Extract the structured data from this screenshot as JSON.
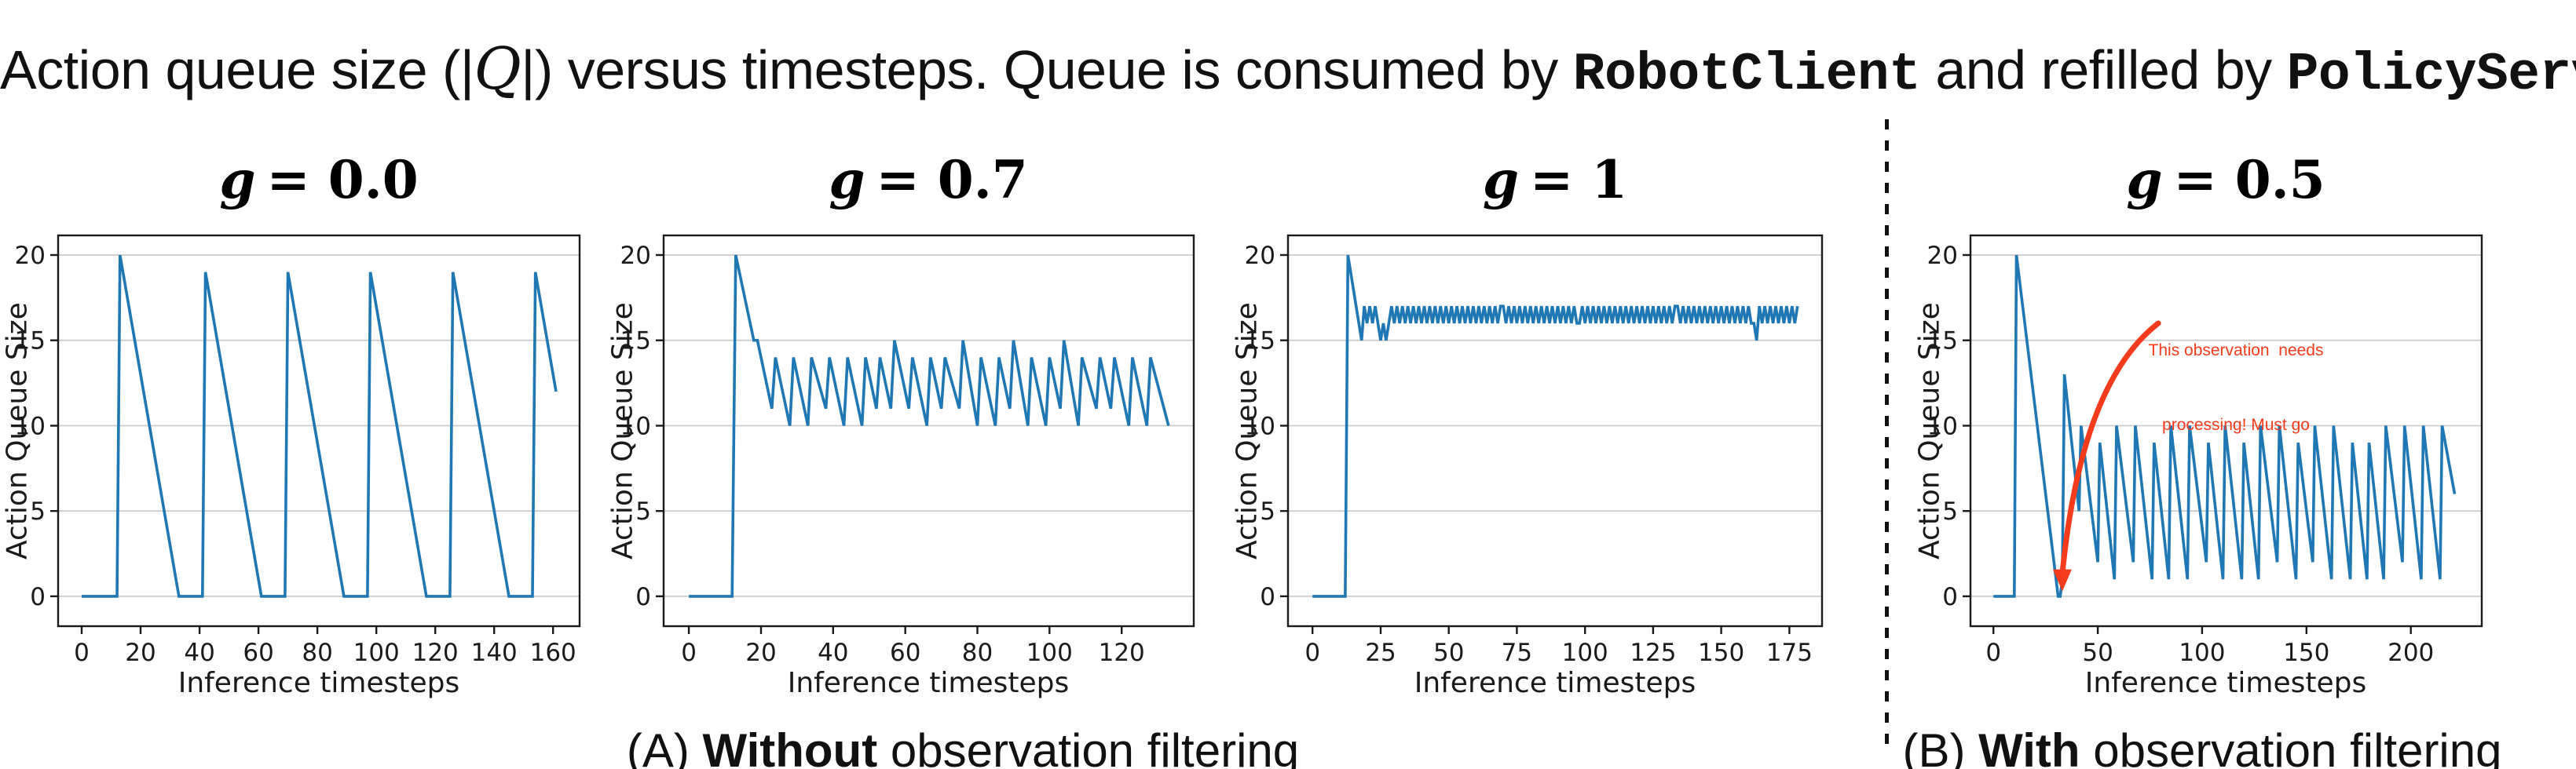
{
  "title": {
    "part1": "Action queue size (|",
    "q": "Q",
    "part2": "|) versus timesteps. Queue is consumed by ",
    "robot": "RobotClient",
    "part3": " and refilled by ",
    "policy": "PolicyServer"
  },
  "captions": {
    "a_prefix": "(A) ",
    "a_bold": "Without",
    "a_rest": " observation filtering",
    "b_prefix": "(B) ",
    "b_bold": "With",
    "b_rest": " observation filtering"
  },
  "colors": {
    "line": "#1f77b4",
    "grid": "#cccccc",
    "spine": "#1a1a1a",
    "annotation_red": "#f43b1c",
    "background": "#ffffff"
  },
  "chart_data": [
    {
      "type": "line",
      "title": "g = 0.0",
      "title_var": "g",
      "title_rest": "= 0.0",
      "xlabel": "Inference timesteps",
      "ylabel": "Action Queue Size",
      "xlim": [
        -8,
        169
      ],
      "ylim": [
        -1.75,
        21.15
      ],
      "xticks": [
        0,
        20,
        40,
        60,
        80,
        100,
        120,
        140,
        160
      ],
      "yticks": [
        0,
        5,
        10,
        15,
        20
      ],
      "grid": "horizontal",
      "legend": "none",
      "line_color": "#1f77b4",
      "vertices": [
        [
          0,
          0
        ],
        [
          12,
          0
        ],
        [
          13,
          20
        ],
        [
          33,
          0
        ],
        [
          41,
          0
        ],
        [
          42,
          19
        ],
        [
          61,
          0
        ],
        [
          69,
          0
        ],
        [
          70,
          19
        ],
        [
          89,
          0
        ],
        [
          97,
          0
        ],
        [
          98,
          19
        ],
        [
          117,
          0
        ],
        [
          125,
          0
        ],
        [
          126,
          19
        ],
        [
          145,
          0
        ],
        [
          153,
          0
        ],
        [
          154,
          19
        ],
        [
          161,
          12
        ]
      ]
    },
    {
      "type": "line",
      "title": "g = 0.7",
      "title_var": "g",
      "title_rest": "= 0.7",
      "xlabel": "Inference timesteps",
      "ylabel": "Action Queue Size",
      "xlim": [
        -7,
        140
      ],
      "ylim": [
        -1.75,
        21.15
      ],
      "xticks": [
        0,
        20,
        40,
        60,
        80,
        100,
        120
      ],
      "yticks": [
        0,
        5,
        10,
        15,
        20
      ],
      "grid": "horizontal",
      "legend": "none",
      "line_color": "#1f77b4",
      "vertices": [
        [
          0,
          0
        ],
        [
          12,
          0
        ],
        [
          13,
          20
        ],
        [
          18,
          15
        ],
        [
          19,
          15
        ],
        [
          23,
          11
        ],
        [
          24,
          14
        ],
        [
          28,
          10
        ],
        [
          29,
          14
        ],
        [
          33,
          10
        ],
        [
          34,
          14
        ],
        [
          38,
          11
        ],
        [
          39,
          14
        ],
        [
          43,
          10
        ],
        [
          44,
          14
        ],
        [
          48,
          10
        ],
        [
          49,
          14
        ],
        [
          52,
          11
        ],
        [
          53,
          14
        ],
        [
          56,
          11
        ],
        [
          57,
          15
        ],
        [
          61,
          11
        ],
        [
          62,
          14
        ],
        [
          66,
          10
        ],
        [
          67,
          14
        ],
        [
          70,
          11
        ],
        [
          71,
          14
        ],
        [
          75,
          11
        ],
        [
          76,
          15
        ],
        [
          80,
          10
        ],
        [
          81,
          14
        ],
        [
          85,
          10
        ],
        [
          86,
          14
        ],
        [
          89,
          11
        ],
        [
          90,
          15
        ],
        [
          94,
          10
        ],
        [
          95,
          14
        ],
        [
          99,
          10
        ],
        [
          100,
          14
        ],
        [
          103,
          11
        ],
        [
          104,
          15
        ],
        [
          108,
          10
        ],
        [
          109,
          14
        ],
        [
          113,
          11
        ],
        [
          114,
          14
        ],
        [
          117,
          11
        ],
        [
          118,
          14
        ],
        [
          122,
          10
        ],
        [
          123,
          14
        ],
        [
          127,
          10
        ],
        [
          128,
          14
        ],
        [
          133,
          10
        ]
      ]
    },
    {
      "type": "line",
      "title": "g = 1",
      "title_var": "g",
      "title_rest": "= 1",
      "xlabel": "Inference timesteps",
      "ylabel": "Action Queue Size",
      "xlim": [
        -9,
        187
      ],
      "ylim": [
        -1.75,
        21.15
      ],
      "xticks": [
        0,
        25,
        50,
        75,
        100,
        125,
        150,
        175
      ],
      "yticks": [
        0,
        5,
        10,
        15,
        20
      ],
      "grid": "horizontal",
      "legend": "none",
      "line_color": "#1f77b4",
      "vertices": [
        [
          0,
          0
        ],
        [
          12,
          0
        ],
        [
          13,
          20
        ],
        [
          18,
          15
        ],
        [
          19,
          17
        ],
        [
          20,
          16
        ],
        [
          21,
          17
        ],
        [
          22,
          16
        ],
        [
          23,
          17
        ],
        [
          24,
          16
        ],
        [
          25,
          15
        ],
        [
          26,
          16
        ],
        [
          27,
          15
        ],
        [
          28,
          16
        ],
        [
          29,
          17
        ],
        [
          30,
          16
        ],
        [
          31,
          17
        ],
        [
          32,
          16
        ],
        [
          33,
          17
        ],
        [
          34,
          16
        ],
        [
          35,
          17
        ],
        [
          36,
          16
        ],
        [
          37,
          17
        ],
        [
          38,
          16
        ],
        [
          39,
          17
        ],
        [
          40,
          16
        ],
        [
          41,
          17
        ],
        [
          42,
          16
        ],
        [
          43,
          17
        ],
        [
          44,
          16
        ],
        [
          45,
          17
        ],
        [
          46,
          16
        ],
        [
          47,
          17
        ],
        [
          48,
          16
        ],
        [
          49,
          17
        ],
        [
          50,
          16
        ],
        [
          51,
          17
        ],
        [
          52,
          16
        ],
        [
          53,
          17
        ],
        [
          54,
          16
        ],
        [
          55,
          17
        ],
        [
          56,
          16
        ],
        [
          57,
          17
        ],
        [
          58,
          16
        ],
        [
          59,
          17
        ],
        [
          60,
          16
        ],
        [
          61,
          17
        ],
        [
          62,
          16
        ],
        [
          63,
          17
        ],
        [
          64,
          16
        ],
        [
          65,
          17
        ],
        [
          66,
          16
        ],
        [
          67,
          17
        ],
        [
          68,
          16
        ],
        [
          69,
          17
        ],
        [
          70,
          17
        ],
        [
          71,
          16
        ],
        [
          72,
          17
        ],
        [
          73,
          16
        ],
        [
          74,
          17
        ],
        [
          75,
          16
        ],
        [
          76,
          17
        ],
        [
          77,
          16
        ],
        [
          78,
          17
        ],
        [
          79,
          16
        ],
        [
          80,
          17
        ],
        [
          81,
          16
        ],
        [
          82,
          17
        ],
        [
          83,
          16
        ],
        [
          84,
          17
        ],
        [
          85,
          16
        ],
        [
          86,
          17
        ],
        [
          87,
          16
        ],
        [
          88,
          17
        ],
        [
          89,
          16
        ],
        [
          90,
          17
        ],
        [
          91,
          16
        ],
        [
          92,
          17
        ],
        [
          93,
          16
        ],
        [
          94,
          17
        ],
        [
          95,
          16
        ],
        [
          96,
          17
        ],
        [
          97,
          16
        ],
        [
          98,
          16
        ],
        [
          99,
          17
        ],
        [
          100,
          16
        ],
        [
          101,
          17
        ],
        [
          102,
          16
        ],
        [
          103,
          17
        ],
        [
          104,
          16
        ],
        [
          105,
          17
        ],
        [
          106,
          16
        ],
        [
          107,
          17
        ],
        [
          108,
          16
        ],
        [
          109,
          17
        ],
        [
          110,
          16
        ],
        [
          111,
          17
        ],
        [
          112,
          16
        ],
        [
          113,
          17
        ],
        [
          114,
          16
        ],
        [
          115,
          17
        ],
        [
          116,
          16
        ],
        [
          117,
          17
        ],
        [
          118,
          16
        ],
        [
          119,
          17
        ],
        [
          120,
          16
        ],
        [
          121,
          17
        ],
        [
          122,
          16
        ],
        [
          123,
          17
        ],
        [
          124,
          16
        ],
        [
          125,
          17
        ],
        [
          126,
          16
        ],
        [
          127,
          17
        ],
        [
          128,
          16
        ],
        [
          129,
          17
        ],
        [
          130,
          16
        ],
        [
          131,
          17
        ],
        [
          132,
          16
        ],
        [
          133,
          17
        ],
        [
          134,
          17
        ],
        [
          135,
          16
        ],
        [
          136,
          17
        ],
        [
          137,
          16
        ],
        [
          138,
          17
        ],
        [
          139,
          16
        ],
        [
          140,
          17
        ],
        [
          141,
          16
        ],
        [
          142,
          17
        ],
        [
          143,
          16
        ],
        [
          144,
          17
        ],
        [
          145,
          16
        ],
        [
          146,
          17
        ],
        [
          147,
          16
        ],
        [
          148,
          17
        ],
        [
          149,
          16
        ],
        [
          150,
          17
        ],
        [
          151,
          16
        ],
        [
          152,
          17
        ],
        [
          153,
          16
        ],
        [
          154,
          17
        ],
        [
          155,
          16
        ],
        [
          156,
          17
        ],
        [
          157,
          16
        ],
        [
          158,
          17
        ],
        [
          159,
          16
        ],
        [
          160,
          17
        ],
        [
          161,
          16
        ],
        [
          162,
          16
        ],
        [
          163,
          15
        ],
        [
          164,
          17
        ],
        [
          165,
          16
        ],
        [
          166,
          17
        ],
        [
          167,
          16
        ],
        [
          168,
          17
        ],
        [
          169,
          16
        ],
        [
          170,
          17
        ],
        [
          171,
          16
        ],
        [
          172,
          17
        ],
        [
          173,
          16
        ],
        [
          174,
          17
        ],
        [
          175,
          16
        ],
        [
          176,
          17
        ],
        [
          177,
          16
        ],
        [
          178,
          17
        ]
      ]
    },
    {
      "type": "line",
      "title": "g = 0.5",
      "title_var": "g",
      "title_rest": "= 0.5",
      "xlabel": "Inference timesteps",
      "ylabel": "Action Queue Size",
      "xlim": [
        -11,
        234
      ],
      "ylim": [
        -1.75,
        21.15
      ],
      "xticks": [
        0,
        50,
        100,
        150,
        200
      ],
      "yticks": [
        0,
        5,
        10,
        15,
        20
      ],
      "grid": "horizontal",
      "legend": "none",
      "line_color": "#1f77b4",
      "vertices": [
        [
          0,
          0
        ],
        [
          10,
          0
        ],
        [
          11,
          20
        ],
        [
          31,
          0
        ],
        [
          32,
          0
        ],
        [
          33,
          1
        ],
        [
          34,
          13
        ],
        [
          41,
          5
        ],
        [
          42,
          10
        ],
        [
          50,
          2
        ],
        [
          51,
          9
        ],
        [
          58,
          1
        ],
        [
          59,
          10
        ],
        [
          67,
          2
        ],
        [
          68,
          10
        ],
        [
          76,
          1
        ],
        [
          77,
          9
        ],
        [
          84,
          1
        ],
        [
          85,
          10
        ],
        [
          93,
          1
        ],
        [
          94,
          10
        ],
        [
          102,
          2
        ],
        [
          103,
          9
        ],
        [
          110,
          1
        ],
        [
          111,
          10
        ],
        [
          119,
          1
        ],
        [
          120,
          9
        ],
        [
          127,
          1
        ],
        [
          128,
          10
        ],
        [
          136,
          2
        ],
        [
          137,
          10
        ],
        [
          145,
          1
        ],
        [
          146,
          9
        ],
        [
          153,
          2
        ],
        [
          154,
          10
        ],
        [
          162,
          1
        ],
        [
          163,
          10
        ],
        [
          171,
          1
        ],
        [
          172,
          9
        ],
        [
          179,
          1
        ],
        [
          180,
          9
        ],
        [
          187,
          1
        ],
        [
          188,
          10
        ],
        [
          196,
          2
        ],
        [
          197,
          10
        ],
        [
          205,
          1
        ],
        [
          206,
          10
        ],
        [
          214,
          1
        ],
        [
          215,
          10
        ],
        [
          221,
          6
        ]
      ],
      "annotation": {
        "line1": "This observation  needs",
        "line2": "processing! Must go",
        "color": "#f43b1c",
        "arrow_start": [
          79,
          16.0
        ],
        "arrow_control": [
          42,
          12.5
        ],
        "arrow_end": [
          33,
          1.3
        ]
      }
    }
  ]
}
